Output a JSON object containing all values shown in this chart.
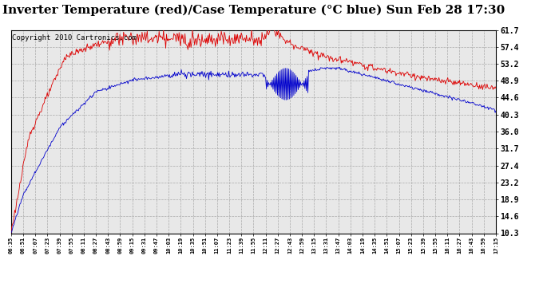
{
  "title": "Inverter Temperature (red)/Case Temperature (°C blue) Sun Feb 28 17:30",
  "copyright": "Copyright 2010 Cartronics.com",
  "y_ticks": [
    10.3,
    14.6,
    18.9,
    23.2,
    27.4,
    31.7,
    36.0,
    40.3,
    44.6,
    48.9,
    53.2,
    57.4,
    61.7
  ],
  "ylim": [
    10.3,
    61.7
  ],
  "x_labels": [
    "06:35",
    "06:51",
    "07:07",
    "07:23",
    "07:39",
    "07:55",
    "08:11",
    "08:27",
    "08:43",
    "08:59",
    "09:15",
    "09:31",
    "09:47",
    "10:03",
    "10:19",
    "10:35",
    "10:51",
    "11:07",
    "11:23",
    "11:39",
    "11:55",
    "12:11",
    "12:27",
    "12:43",
    "12:59",
    "13:15",
    "13:31",
    "13:47",
    "14:03",
    "14:19",
    "14:35",
    "14:51",
    "15:07",
    "15:23",
    "15:39",
    "15:55",
    "16:11",
    "16:27",
    "16:43",
    "16:59",
    "17:15"
  ],
  "bg_color": "#e8e8e8",
  "grid_color": "#aaaaaa",
  "red_color": "#dd0000",
  "blue_color": "#0000cc",
  "title_fontsize": 11,
  "copyright_fontsize": 6.5,
  "n_labels": 41,
  "n_points": 656
}
